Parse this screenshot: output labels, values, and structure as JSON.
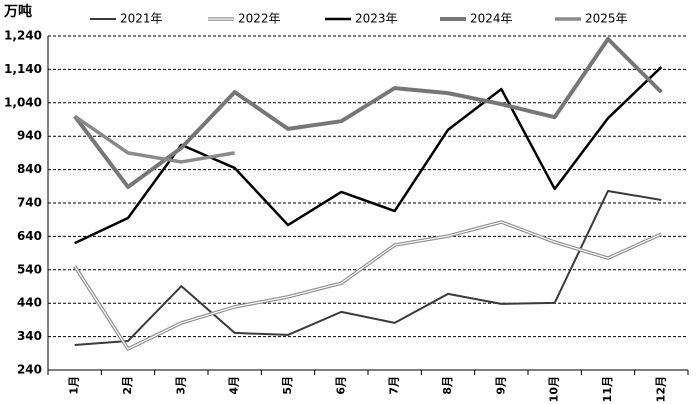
{
  "chart_data": {
    "type": "line",
    "y_label": "万吨",
    "categories": [
      "1月",
      "2月",
      "3月",
      "4月",
      "5月",
      "6月",
      "7月",
      "8月",
      "9月",
      "10月",
      "11月",
      "12月"
    ],
    "ylim": [
      240,
      1240
    ],
    "yticks": [
      240,
      340,
      440,
      540,
      640,
      740,
      840,
      940,
      {
        "value": 1040,
        "label": "1,040"
      },
      {
        "value": 1140,
        "label": "1,140"
      },
      {
        "value": 1240,
        "label": "1,240"
      }
    ],
    "grid": true,
    "legend": "top",
    "series": [
      {
        "name": "2021年",
        "color": "#3a3a3a",
        "values": [
          315,
          327,
          491,
          351,
          345,
          414,
          381,
          468,
          438,
          441,
          776,
          749
        ]
      },
      {
        "name": "2022年",
        "color": "#8c8c8c",
        "values": [
          551,
          303,
          381,
          429,
          459,
          500,
          614,
          641,
          683,
          623,
          575,
          647
        ]
      },
      {
        "name": "2023年",
        "color": "#000000",
        "values": [
          620,
          695,
          914,
          845,
          674,
          773,
          716,
          959,
          1081,
          782,
          994,
          1147
        ]
      },
      {
        "name": "2024年",
        "color": "#767676",
        "values": [
          1000,
          788,
          905,
          1072,
          962,
          985,
          1084,
          1069,
          1036,
          997,
          1231,
          1072
        ]
      },
      {
        "name": "2025年",
        "color": "#8a8a8a",
        "values": [
          1000,
          890,
          863,
          890,
          null,
          null,
          null,
          null,
          null,
          null,
          null,
          null
        ]
      }
    ]
  }
}
